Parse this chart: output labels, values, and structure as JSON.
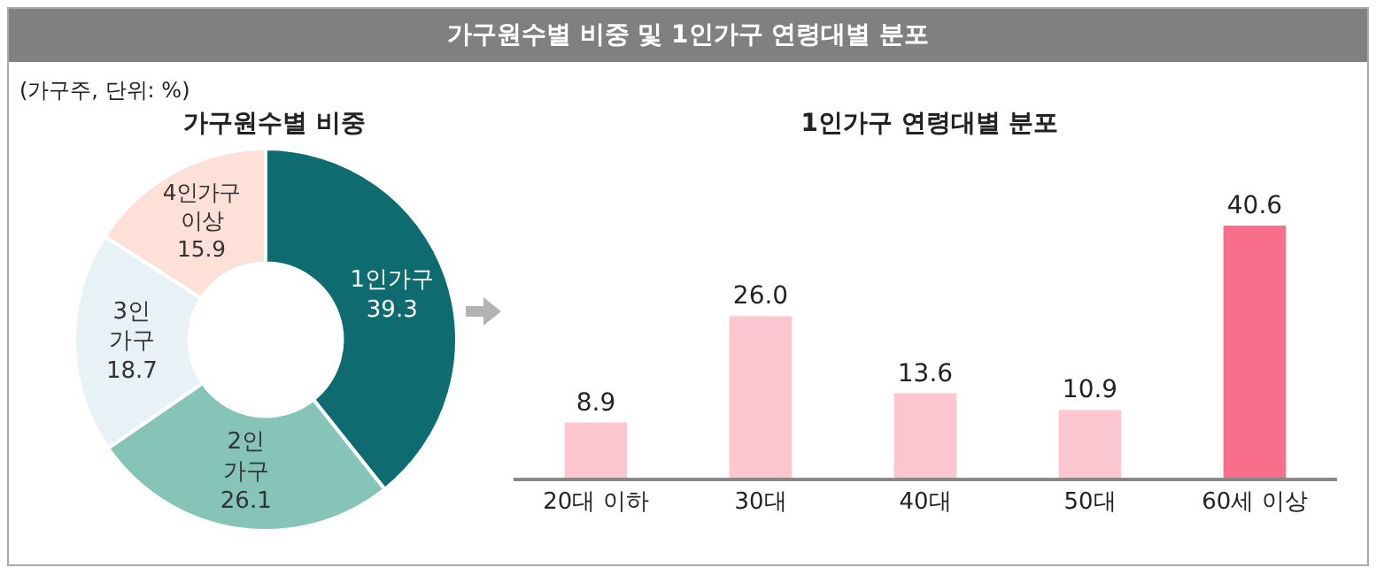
{
  "chart_data": [
    {
      "type": "donut",
      "title": "가구원수별 비중 및 1인가구 연령대별 분포",
      "subtitle": "가구원수별 비중",
      "annotations": [
        "(가구주, 단위: %)"
      ],
      "categories": [
        "1인가구",
        "2인 가구",
        "3인 가구",
        "4인가구 이상"
      ],
      "values": [
        39.3,
        26.1,
        18.7,
        15.9
      ],
      "colors": [
        "#0e6b70",
        "#86c4b8",
        "#e8f2f6",
        "#fde0d8"
      ],
      "data_labels": true,
      "legend": false
    },
    {
      "type": "bar",
      "title": "1인가구 연령대별 분포",
      "categories": [
        "20대 이하",
        "30대",
        "40대",
        "50대",
        "60세 이상"
      ],
      "values": [
        8.9,
        26.0,
        13.6,
        10.9,
        40.6
      ],
      "colors": [
        "#fcc6d1",
        "#fcc6d1",
        "#fcc6d1",
        "#fcc6d1",
        "#f76f8a"
      ],
      "value_labels": [
        "8.9",
        "26.0",
        "13.6",
        "10.9",
        "40.6"
      ],
      "tick_labels": "x",
      "grid": false,
      "legend": false
    }
  ]
}
